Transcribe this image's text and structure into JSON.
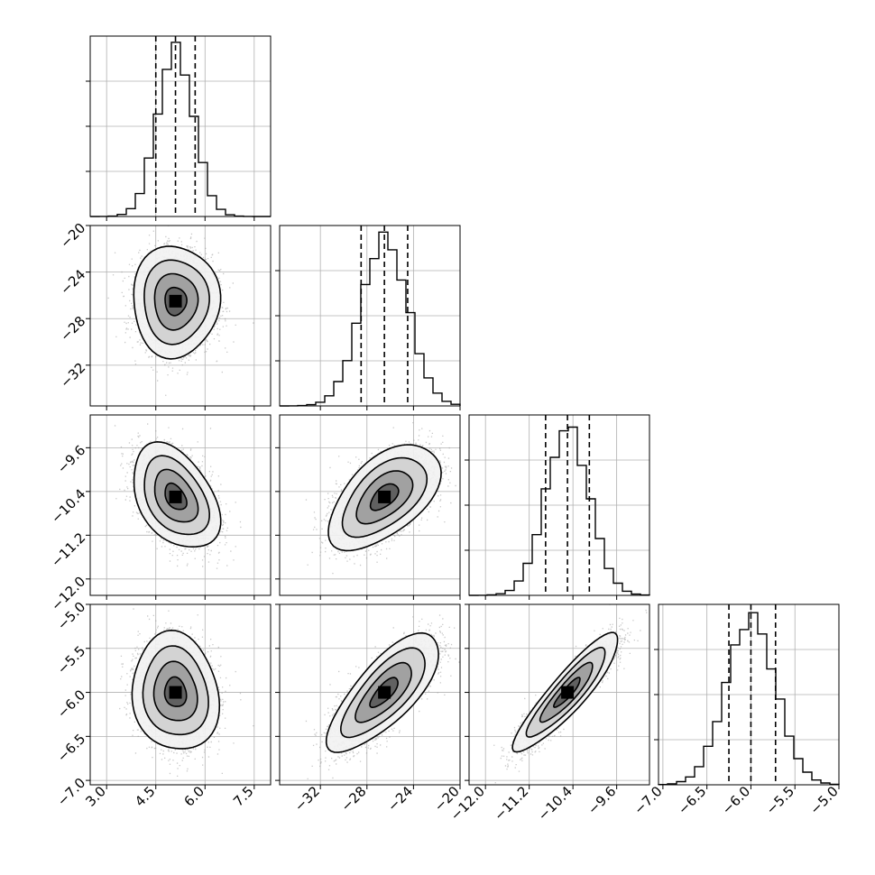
{
  "chart_data": {
    "type": "corner",
    "grid": true,
    "colors": {
      "line": "#000000",
      "grid": "#b0b0b0",
      "points": "#9a9a9a"
    },
    "parameters": [
      {
        "index": 0,
        "range": [
          2.5,
          8.0
        ],
        "ticks": [
          3.0,
          4.5,
          6.0,
          7.5
        ],
        "tick_labels": [
          "3.0",
          "4.5",
          "6.0",
          "7.5"
        ],
        "mean": 5.1,
        "sd": 0.55,
        "quantiles": [
          4.5,
          5.1,
          5.7
        ]
      },
      {
        "index": 1,
        "range": [
          -35.5,
          -20.0
        ],
        "ticks": [
          -32,
          -28,
          -24,
          -20
        ],
        "tick_labels": [
          "−32",
          "−28",
          "−24",
          "−20"
        ],
        "mean": -26.5,
        "sd": 2.0,
        "quantiles": [
          -28.5,
          -26.5,
          -24.5
        ]
      },
      {
        "index": 2,
        "range": [
          -12.3,
          -9.0
        ],
        "ticks": [
          -12.0,
          -11.2,
          -10.4,
          -9.6
        ],
        "tick_labels": [
          "−12.0",
          "−11.2",
          "−10.4",
          "−9.6"
        ],
        "mean": -10.5,
        "sd": 0.4,
        "quantiles": [
          -10.9,
          -10.5,
          -10.1
        ]
      },
      {
        "index": 3,
        "range": [
          -7.05,
          -5.0
        ],
        "ticks": [
          -7.0,
          -6.5,
          -6.0,
          -5.5,
          -5.0
        ],
        "tick_labels": [
          "−7.0",
          "−6.5",
          "−6.0",
          "−5.5",
          "−5.0"
        ],
        "mean": -6.0,
        "sd": 0.28,
        "quantiles": [
          -6.25,
          -6.0,
          -5.72
        ]
      }
    ],
    "correlations": [
      [
        1,
        0,
        -0.4,
        -0.1
      ],
      [
        0,
        1,
        0.55,
        0.75
      ],
      [
        -0.4,
        0.55,
        1,
        0.9
      ],
      [
        -0.1,
        0.75,
        0.9,
        1
      ]
    ],
    "contour_levels_sigma": [
      0.5,
      1.0,
      1.5,
      2.0
    ]
  }
}
